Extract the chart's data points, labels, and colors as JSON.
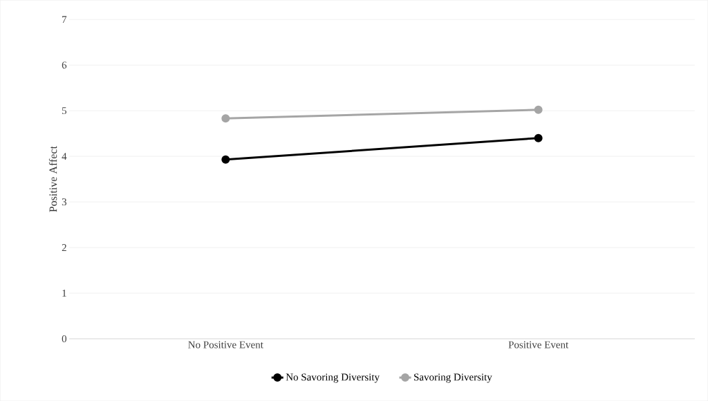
{
  "chart_data": {
    "type": "line",
    "ylabel": "Positive Affect",
    "categories": [
      "No Positive Event",
      "Positive Event"
    ],
    "series": [
      {
        "name": "No Savoring Diversity",
        "color": "#000000",
        "values": [
          3.93,
          4.4
        ]
      },
      {
        "name": "Savoring Diversity",
        "color": "#a5a5a5",
        "values": [
          4.83,
          5.02
        ]
      }
    ],
    "ylim": [
      0,
      7
    ],
    "yticks": [
      0,
      1,
      2,
      3,
      4,
      5,
      6,
      7
    ],
    "grid": "y",
    "legend": "bottom",
    "marker": "circle",
    "line_style": "solid"
  }
}
